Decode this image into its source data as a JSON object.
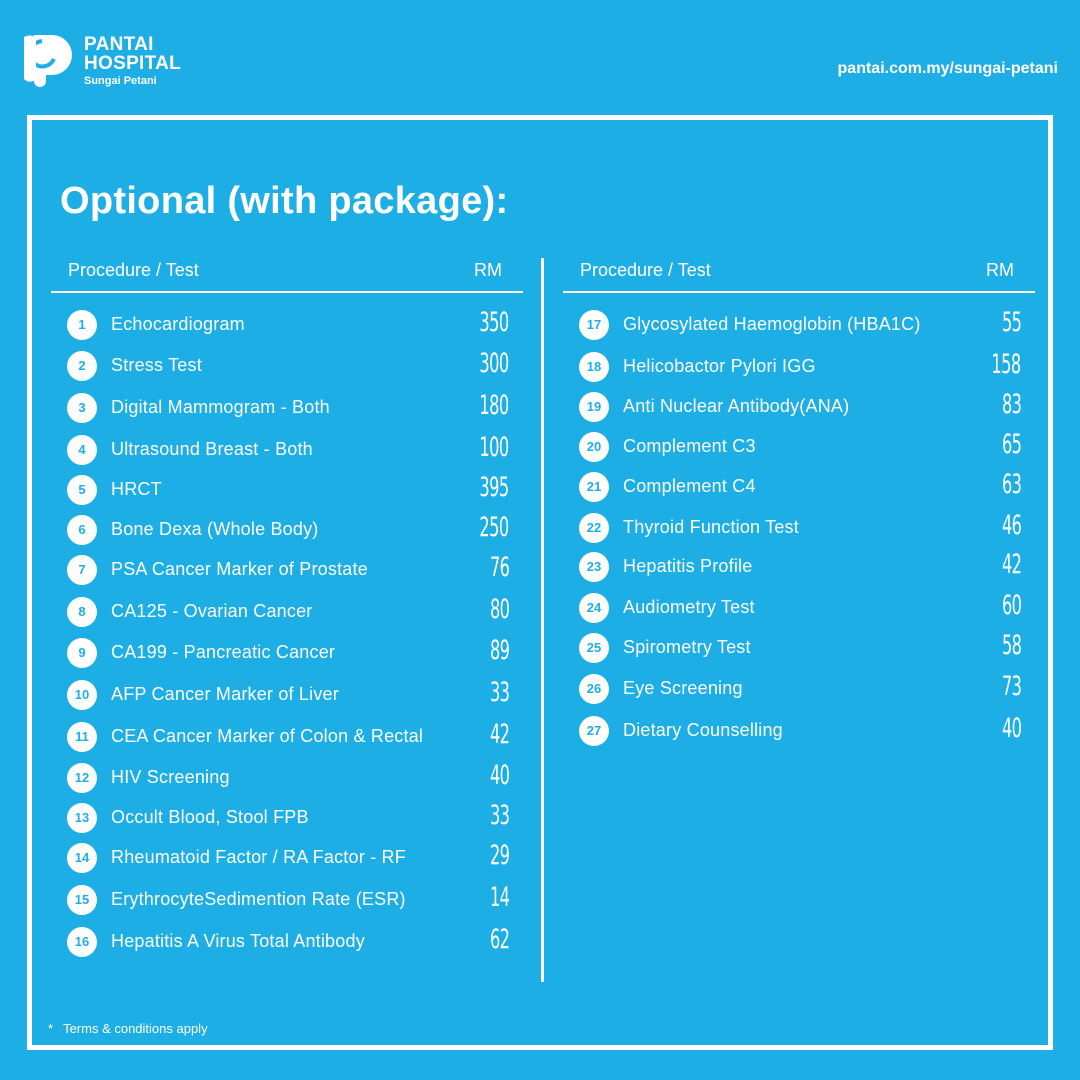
{
  "brand": {
    "line1": "PANTAI",
    "line2": "HOSPITAL",
    "line3": "Sungai Petani",
    "website": "pantai.com.my/sungai-petani"
  },
  "title": "Optional (with package):",
  "table": {
    "header_procedure": "Procedure / Test",
    "header_rm": "RM",
    "left": [
      {
        "num": "1",
        "name": "Echocardiogram",
        "price": "350"
      },
      {
        "num": "2",
        "name": "Stress Test",
        "price": "300"
      },
      {
        "num": "3",
        "name": "Digital Mammogram - Both",
        "price": "180"
      },
      {
        "num": "4",
        "name": "Ultrasound Breast - Both",
        "price": "100"
      },
      {
        "num": "5",
        "name": "HRCT",
        "price": "395"
      },
      {
        "num": "6",
        "name": "Bone Dexa (Whole Body)",
        "price": "250"
      },
      {
        "num": "7",
        "name": "PSA Cancer Marker of Prostate",
        "price": "76"
      },
      {
        "num": "8",
        "name": "CA125 - Ovarian Cancer",
        "price": "80"
      },
      {
        "num": "9",
        "name": "CA199 - Pancreatic Cancer",
        "price": "89"
      },
      {
        "num": "10",
        "name": "AFP Cancer Marker of Liver",
        "price": "33"
      },
      {
        "num": "11",
        "name": "CEA Cancer Marker of Colon & Rectal",
        "price": "42"
      },
      {
        "num": "12",
        "name": "HIV Screening",
        "price": "40"
      },
      {
        "num": "13",
        "name": "Occult Blood, Stool FPB",
        "price": "33"
      },
      {
        "num": "14",
        "name": "Rheumatoid Factor / RA Factor - RF",
        "price": "29"
      },
      {
        "num": "15",
        "name": "ErythrocyteSedimention Rate (ESR)",
        "price": "14"
      },
      {
        "num": "16",
        "name": "Hepatitis A Virus Total Antibody",
        "price": "62"
      }
    ],
    "right": [
      {
        "num": "17",
        "name": "Glycosylated Haemoglobin (HBA1C)",
        "price": "55"
      },
      {
        "num": "18",
        "name": "Helicobactor Pylori IGG",
        "price": "158"
      },
      {
        "num": "19",
        "name": "Anti Nuclear Antibody(ANA)",
        "price": "83"
      },
      {
        "num": "20",
        "name": "Complement C3",
        "price": "65"
      },
      {
        "num": "21",
        "name": "Complement C4",
        "price": "63"
      },
      {
        "num": "22",
        "name": "Thyroid Function Test",
        "price": "46"
      },
      {
        "num": "23",
        "name": "Hepatitis Profile",
        "price": "42"
      },
      {
        "num": "24",
        "name": "Audiometry Test",
        "price": "60"
      },
      {
        "num": "25",
        "name": "Spirometry Test",
        "price": "58"
      },
      {
        "num": "26",
        "name": "Eye Screening",
        "price": "73"
      },
      {
        "num": "27",
        "name": "Dietary Counselling",
        "price": "40"
      }
    ]
  },
  "footnote": {
    "mark": "*",
    "text": "Terms & conditions apply"
  },
  "colors": {
    "background": "#1eaee6",
    "foreground": "#ffffff"
  }
}
